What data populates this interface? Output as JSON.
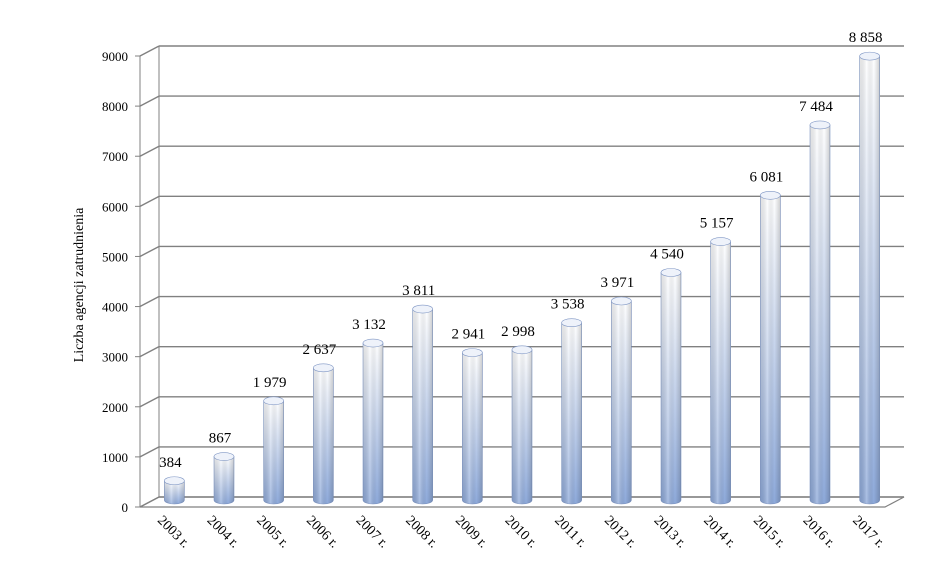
{
  "chart_data": {
    "type": "bar",
    "title": "",
    "xlabel": "",
    "ylabel": "Liczba agencji zatrudnienia",
    "categories": [
      "2003 r.",
      "2004 r.",
      "2005 r.",
      "2006 r.",
      "2007 r.",
      "2008 r.",
      "2009 r.",
      "2010 r.",
      "2011 r.",
      "2012 r.",
      "2013 r.",
      "2014 r.",
      "2015 r.",
      "2016 r.",
      "2017 r."
    ],
    "values": [
      384,
      867,
      1979,
      2637,
      3132,
      3811,
      2941,
      2998,
      3538,
      3971,
      4540,
      5157,
      6081,
      7484,
      8858
    ],
    "data_labels": [
      "384",
      "867",
      "1 979",
      "2 637",
      "3 132",
      "3 811",
      "2 941",
      "2 998",
      "3 538",
      "3 971",
      "4 540",
      "5 157",
      "6 081",
      "7 484",
      "8 858"
    ],
    "yticks": [
      0,
      1000,
      2000,
      3000,
      4000,
      5000,
      6000,
      7000,
      8000,
      9000
    ],
    "ylim": [
      0,
      9000
    ],
    "grid": true,
    "legend": "none",
    "bar_style": "3d-cylinder",
    "colors": {
      "bar_top": "#ffffff",
      "bar_bottom": "#8eaadb",
      "grid": "#808080"
    }
  }
}
